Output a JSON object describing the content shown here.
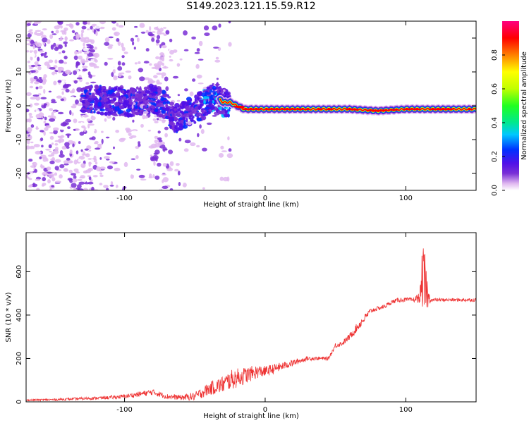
{
  "title": "S149.2023.121.15.59.R12",
  "chart_data": [
    {
      "type": "heatmap",
      "xlabel": "Height of straight line (km)",
      "ylabel": "Frequency (Hz)",
      "xlim": [
        -170,
        150
      ],
      "ylim": [
        -25,
        25
      ],
      "x_ticks": [
        -100,
        0,
        100
      ],
      "y_ticks": [
        20,
        10,
        0,
        -10,
        -20
      ],
      "colorbar": {
        "label": "Normalized spectral amplitude",
        "range": [
          0,
          1
        ],
        "ticks": [
          "0.0",
          "0.2",
          "0.4",
          "0.6",
          "0.8"
        ],
        "colors": [
          "#ffffff",
          "#e0b8f0",
          "#7a2fd6",
          "#5010e8",
          "#0030ff",
          "#00c8ff",
          "#00e890",
          "#20ff20",
          "#c0ff00",
          "#ffff00",
          "#ff8000",
          "#ff0000",
          "#ff0080"
        ]
      },
      "ridge": {
        "x": [
          -130,
          -110,
          -95,
          -80,
          -70,
          -65,
          -55,
          -45,
          -35,
          -30,
          -25,
          -20,
          -15,
          -10,
          0,
          10,
          30,
          60,
          80,
          100,
          120,
          150
        ],
        "y": [
          2,
          1.5,
          1,
          2,
          0,
          -4,
          -2,
          0,
          3,
          1,
          1,
          0,
          -1,
          -1,
          -1,
          -1,
          -1,
          -1,
          -1.5,
          -1,
          -1,
          -1
        ]
      }
    },
    {
      "type": "line",
      "xlabel": "Height of straight line (km)",
      "ylabel": "SNR (10 * v/v)",
      "xlim": [
        -170,
        150
      ],
      "ylim": [
        0,
        780
      ],
      "x_ticks": [
        -100,
        0,
        100
      ],
      "y_ticks": [
        0,
        200,
        400,
        600
      ],
      "series": [
        {
          "color": "#ee3333",
          "x": [
            -170,
            -150,
            -130,
            -110,
            -100,
            -90,
            -80,
            -70,
            -60,
            -50,
            -40,
            -35,
            -30,
            -25,
            -20,
            -15,
            -10,
            -5,
            0,
            10,
            20,
            30,
            40,
            45,
            50,
            55,
            60,
            65,
            70,
            75,
            80,
            85,
            90,
            95,
            100,
            105,
            110,
            112,
            114,
            116,
            118,
            120,
            130,
            140,
            150
          ],
          "y": [
            8,
            10,
            15,
            20,
            25,
            35,
            45,
            25,
            20,
            25,
            60,
            70,
            80,
            100,
            110,
            120,
            130,
            140,
            140,
            160,
            180,
            200,
            200,
            200,
            260,
            270,
            300,
            340,
            380,
            420,
            430,
            440,
            460,
            470,
            470,
            470,
            480,
            580,
            520,
            480,
            470,
            470,
            470,
            470,
            470
          ],
          "noise": [
            4,
            5,
            6,
            8,
            10,
            12,
            14,
            12,
            12,
            20,
            30,
            35,
            40,
            45,
            45,
            40,
            35,
            30,
            25,
            20,
            15,
            10,
            8,
            8,
            12,
            12,
            15,
            20,
            20,
            12,
            10,
            10,
            10,
            10,
            10,
            10,
            25,
            150,
            150,
            40,
            8,
            8,
            8,
            8,
            8
          ]
        }
      ]
    }
  ]
}
